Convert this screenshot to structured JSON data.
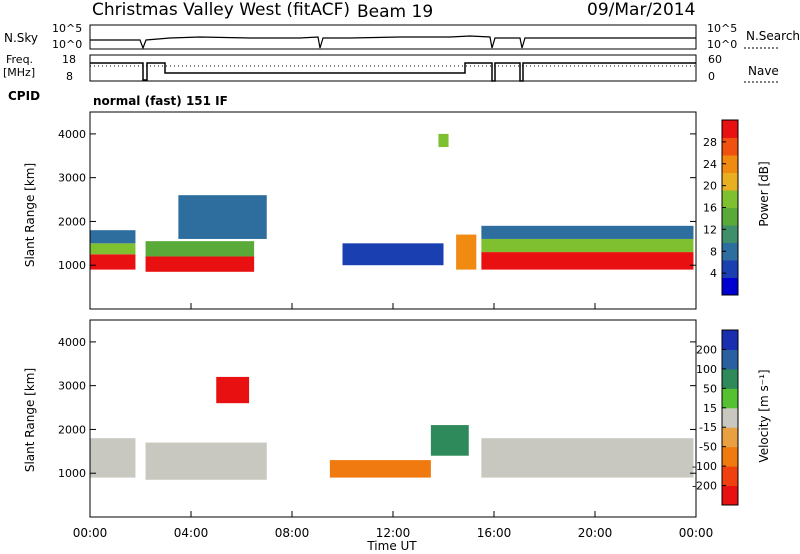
{
  "header": {
    "site": "Christmas Valley West (fitACF)",
    "beam": "Beam 19",
    "date": "09/Mar/2014"
  },
  "top_panel": {
    "left_label": "N.Sky",
    "left_ticks": [
      "10^5",
      "10^0"
    ],
    "right_label": "N.Search",
    "right_ticks": [
      "10^5",
      "10^0"
    ]
  },
  "freq_panel": {
    "left_label_1": "Freq.",
    "left_label_2": "[MHz]",
    "left_ticks": [
      "18",
      "8"
    ],
    "right_label": "Nave",
    "right_ticks": [
      "60",
      "0"
    ]
  },
  "cpid": {
    "label": "CPID",
    "value": "normal (fast) 151 IF"
  },
  "colors": {
    "power_scale": [
      "#0000d0",
      "#1a3fb0",
      "#2d6e9e",
      "#3f8f6a",
      "#5aaa3a",
      "#7fc030",
      "#e8b020",
      "#f08a10",
      "#f05010",
      "#e81010"
    ],
    "velocity_scale": [
      "#1a2fb0",
      "#2a5fa0",
      "#2e8a5a",
      "#55c030",
      "#c8c8c0",
      "#e8a040",
      "#f07a10",
      "#f04010",
      "#e81010"
    ]
  },
  "chart_data": [
    {
      "type": "heatmap",
      "panel": "power",
      "ylabel": "Slant Range [km]",
      "y_ticks": [
        "4000",
        "3000",
        "2000",
        "1000"
      ],
      "ylim": [
        0,
        4500
      ],
      "xlim_hours": [
        0,
        24
      ],
      "colorbar_label": "Power [dB]",
      "colorbar_ticks": [
        "28",
        "24",
        "20",
        "16",
        "12",
        "8",
        "4"
      ],
      "colorbar_range": [
        0,
        32
      ],
      "regions": [
        {
          "t0": 0.0,
          "t1": 1.8,
          "r0": 900,
          "r1": 1250,
          "level": 30
        },
        {
          "t0": 0.0,
          "t1": 1.8,
          "r0": 1250,
          "r1": 1500,
          "level": 18
        },
        {
          "t0": 0.0,
          "t1": 1.8,
          "r0": 1500,
          "r1": 1800,
          "level": 9
        },
        {
          "t0": 2.2,
          "t1": 6.5,
          "r0": 850,
          "r1": 1200,
          "level": 30
        },
        {
          "t0": 2.2,
          "t1": 6.5,
          "r0": 1200,
          "r1": 1550,
          "level": 14
        },
        {
          "t0": 3.5,
          "t1": 7.0,
          "r0": 1600,
          "r1": 2600,
          "level": 8
        },
        {
          "t0": 10.0,
          "t1": 14.0,
          "r0": 1000,
          "r1": 1500,
          "level": 5
        },
        {
          "t0": 13.8,
          "t1": 14.2,
          "r0": 3700,
          "r1": 4000,
          "level": 18
        },
        {
          "t0": 14.5,
          "t1": 15.3,
          "r0": 900,
          "r1": 1700,
          "level": 24
        },
        {
          "t0": 15.5,
          "t1": 23.9,
          "r0": 900,
          "r1": 1300,
          "level": 30
        },
        {
          "t0": 15.5,
          "t1": 23.9,
          "r0": 1300,
          "r1": 1600,
          "level": 16
        },
        {
          "t0": 15.5,
          "t1": 23.9,
          "r0": 1600,
          "r1": 1900,
          "level": 9
        }
      ]
    },
    {
      "type": "heatmap",
      "panel": "velocity",
      "ylabel": "Slant Range [km]",
      "y_ticks": [
        "4000",
        "3000",
        "2000",
        "1000"
      ],
      "ylim": [
        0,
        4500
      ],
      "xlim_hours": [
        0,
        24
      ],
      "colorbar_label": "Velocity [m s⁻¹]",
      "colorbar_ticks": [
        "200",
        "100",
        "50",
        "15",
        "-15",
        "-50",
        "-100",
        "-200"
      ],
      "regions": [
        {
          "t0": 0.0,
          "t1": 1.8,
          "r0": 900,
          "r1": 1800,
          "level": 0
        },
        {
          "t0": 2.2,
          "t1": 7.0,
          "r0": 850,
          "r1": 1700,
          "level": 0
        },
        {
          "t0": 5.0,
          "t1": 6.3,
          "r0": 2600,
          "r1": 3200,
          "level": -200
        },
        {
          "t0": 9.5,
          "t1": 13.5,
          "r0": 900,
          "r1": 1300,
          "level": -60
        },
        {
          "t0": 13.5,
          "t1": 15.0,
          "r0": 1400,
          "r1": 2100,
          "level": 40
        },
        {
          "t0": 15.5,
          "t1": 23.9,
          "r0": 900,
          "r1": 1800,
          "level": 0
        }
      ]
    }
  ],
  "x_axis": {
    "ticks": [
      "00:00",
      "04:00",
      "08:00",
      "12:00",
      "16:00",
      "20:00",
      "00:00"
    ],
    "label": "Time UT"
  }
}
